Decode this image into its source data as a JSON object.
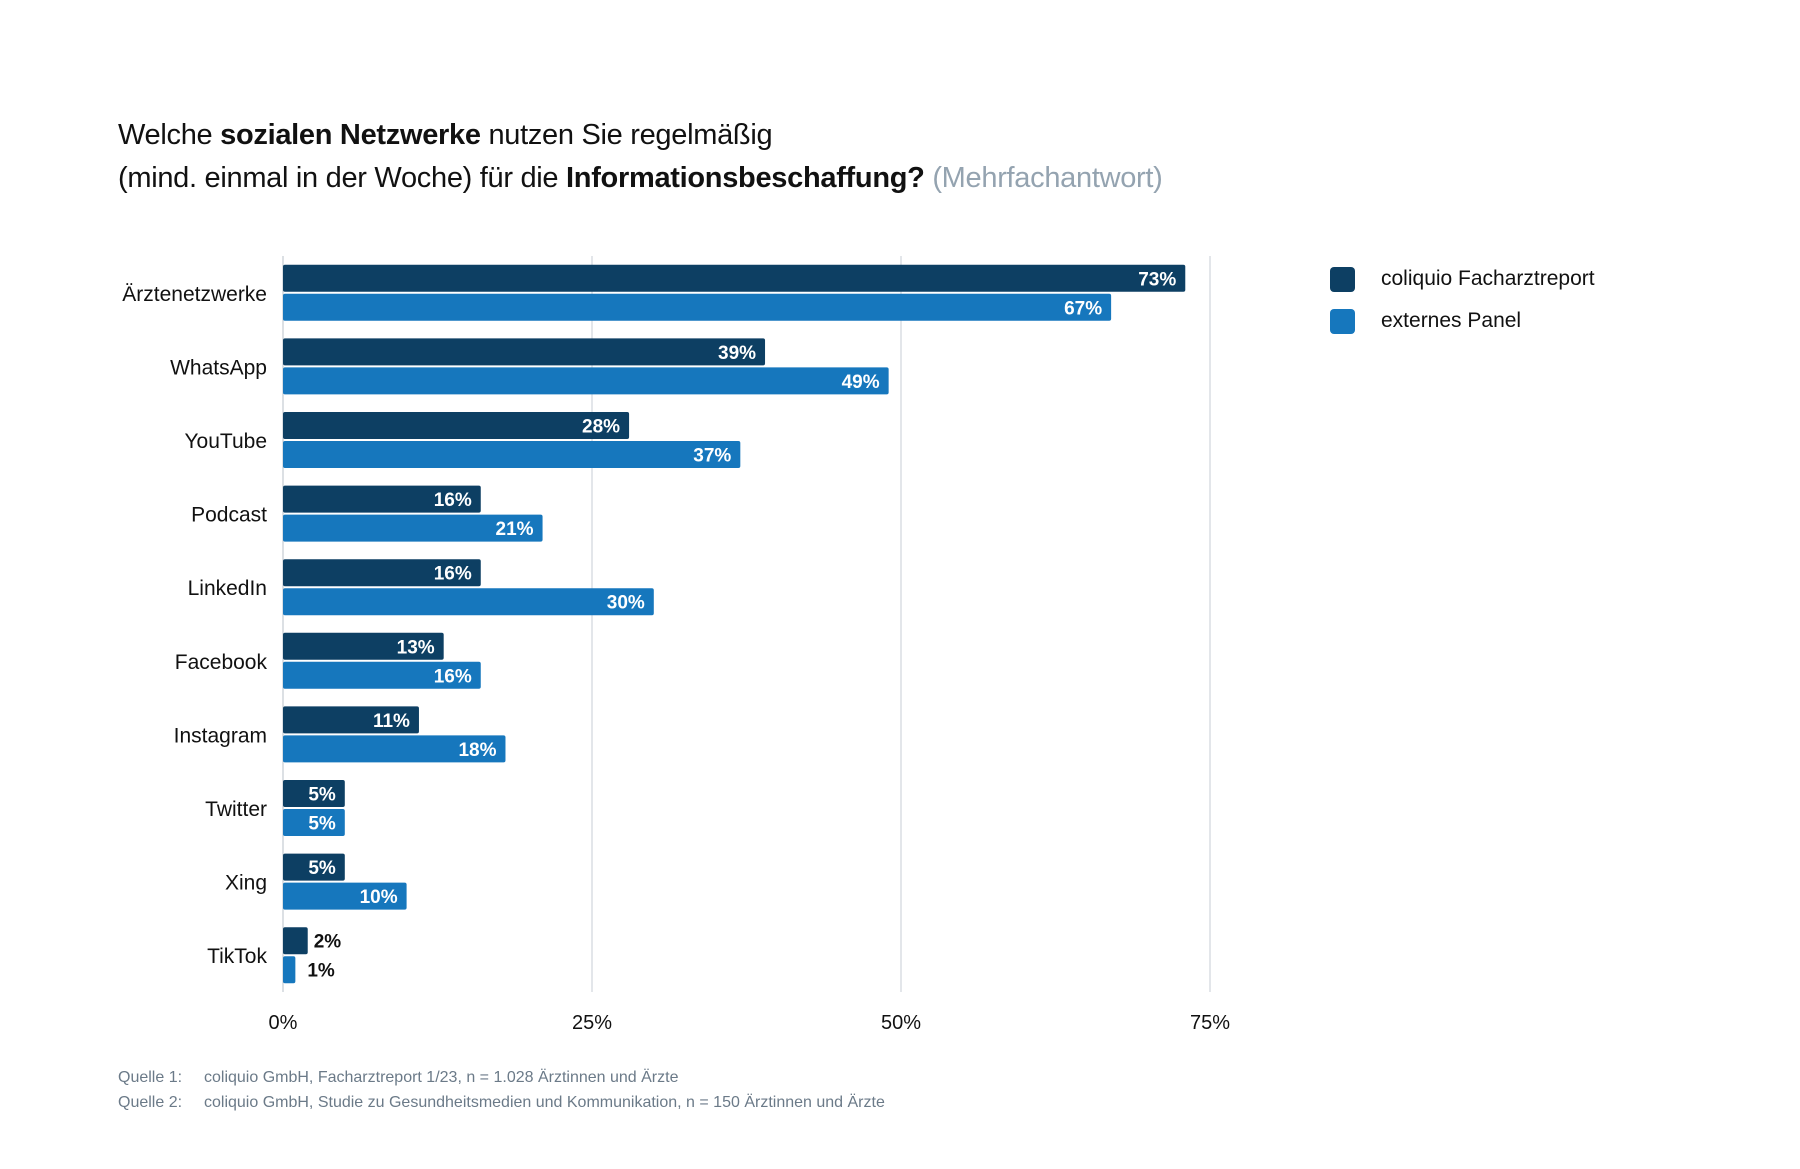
{
  "title": {
    "line1_pre": "Welche ",
    "line1_bold": "sozialen Netzwerke",
    "line1_post": " nutzen Sie regelmäßig",
    "line2_pre": "(mind. einmal in der Woche) für die ",
    "line2_bold": "Informationsbeschaffung?",
    "line2_muted": " (Mehrfachantwort)"
  },
  "colors": {
    "series1": "#0d3f63",
    "series2": "#1677bd",
    "grid": "#d4d9de",
    "label_inside": "#ffffff",
    "label_outside": "#111111"
  },
  "legend": [
    {
      "label": "coliquio Facharztreport",
      "color": "#0d3f63"
    },
    {
      "label": "externes Panel",
      "color": "#1677bd"
    }
  ],
  "chart_data": {
    "type": "bar",
    "orientation": "horizontal",
    "title": "Welche sozialen Netzwerke nutzen Sie regelmäßig (mind. einmal in der Woche) für die Informationsbeschaffung? (Mehrfachantwort)",
    "categories": [
      "Ärztenetzwerke",
      "WhatsApp",
      "YouTube",
      "Podcast",
      "LinkedIn",
      "Facebook",
      "Instagram",
      "Twitter",
      "Xing",
      "TikTok"
    ],
    "series": [
      {
        "name": "coliquio Facharztreport",
        "values": [
          73,
          39,
          28,
          16,
          16,
          13,
          11,
          5,
          5,
          2
        ]
      },
      {
        "name": "externes Panel",
        "values": [
          67,
          49,
          37,
          21,
          30,
          16,
          18,
          5,
          10,
          1
        ]
      }
    ],
    "value_format": "{v}%",
    "xlim": [
      0,
      75
    ],
    "xticks": [
      0,
      25,
      50,
      75
    ],
    "xtick_labels": [
      "0%",
      "25%",
      "50%",
      "75%"
    ],
    "xlabel": "",
    "ylabel": "",
    "grid": true,
    "legend_position": "top-right"
  },
  "footer": [
    {
      "key": "Quelle 1:",
      "text": "coliquio GmbH, Facharztreport 1/23, n = 1.028 Ärztinnen und Ärzte"
    },
    {
      "key": "Quelle 2:",
      "text": "coliquio GmbH, Studie zu Gesundheitsmedien und Kommunikation, n = 150 Ärztinnen und Ärzte"
    }
  ]
}
